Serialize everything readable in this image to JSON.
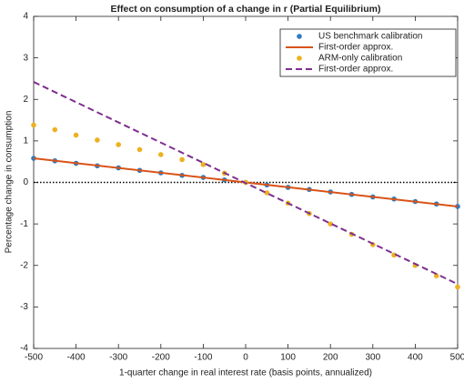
{
  "chart_data": {
    "type": "scatter-line",
    "title": "Effect on consumption of a change in r (Partial Equilibrium)",
    "x_label": "1-quarter change in real interest rate (basis points, annualized)",
    "y_label": "Percentage change in consumption",
    "xlim": [
      -500,
      500
    ],
    "xticks": [
      -500,
      -400,
      -300,
      -200,
      -100,
      0,
      100,
      200,
      300,
      400,
      500
    ],
    "ylim": [
      -4,
      4
    ],
    "yticks": [
      -4,
      -3,
      -2,
      -1,
      0,
      1,
      2,
      3,
      4
    ],
    "legend": "top-right",
    "series": [
      {
        "name": "US benchmark calibration",
        "color": "#2f7bbd",
        "mode": "markers",
        "x": [
          -500,
          -450,
          -400,
          -350,
          -300,
          -250,
          -200,
          -150,
          -100,
          -50,
          0,
          50,
          100,
          150,
          200,
          250,
          300,
          350,
          400,
          450,
          500
        ],
        "values": [
          0.58,
          0.52,
          0.46,
          0.4,
          0.35,
          0.29,
          0.23,
          0.17,
          0.12,
          0.06,
          0,
          -0.06,
          -0.12,
          -0.17,
          -0.23,
          -0.29,
          -0.35,
          -0.4,
          -0.46,
          -0.52,
          -0.58
        ]
      },
      {
        "name": "First-order approx.",
        "color": "#d95319",
        "mode": "line",
        "dashed": false,
        "x": [
          -500,
          500
        ],
        "values": [
          0.58,
          -0.58
        ]
      },
      {
        "name": "ARM-only calibration",
        "color": "#edb120",
        "mode": "markers",
        "x": [
          -500,
          -450,
          -400,
          -350,
          -300,
          -250,
          -200,
          -150,
          -100,
          -50,
          0,
          50,
          100,
          150,
          200,
          250,
          300,
          350,
          400,
          450,
          500
        ],
        "values": [
          1.38,
          1.27,
          1.14,
          1.02,
          0.91,
          0.79,
          0.67,
          0.55,
          0.43,
          0.22,
          0,
          -0.25,
          -0.5,
          -0.75,
          -1.0,
          -1.25,
          -1.5,
          -1.75,
          -2.0,
          -2.25,
          -2.52
        ]
      },
      {
        "name": "First-order approx.",
        "color": "#7e2f8e",
        "mode": "line",
        "dashed": true,
        "x": [
          -500,
          500
        ],
        "values": [
          2.42,
          -2.45
        ]
      }
    ]
  }
}
